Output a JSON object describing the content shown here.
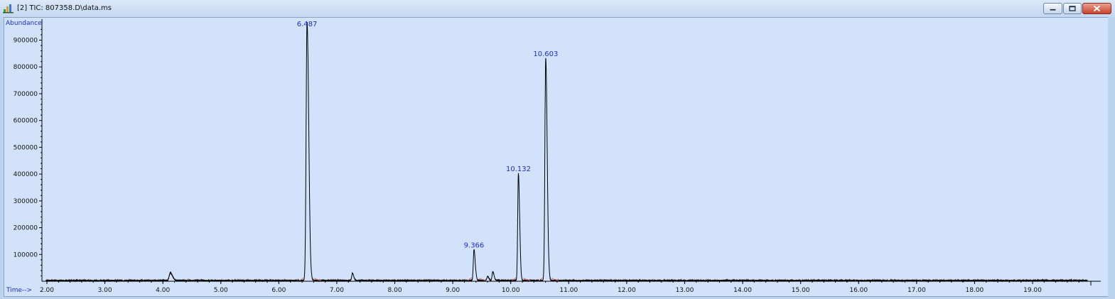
{
  "window": {
    "title": "[2] TIC: 807358.D\\data.ms",
    "icons": {
      "app": "chromatogram-app-icon",
      "minimize": "minimize-icon",
      "maximize": "maximize-icon",
      "close": "close-icon"
    },
    "colors": {
      "plot_background": "#d3e2fb",
      "trace": "#000000",
      "peak_labels": "#1c2bd6",
      "baseline_marks": "#e06666",
      "close_button": "#c8422c"
    }
  },
  "chart_data": {
    "type": "line",
    "ylabel": "Abundance",
    "xlabel": "Time-->",
    "x_ticks": [
      "2.00",
      "3.00",
      "4.00",
      "5.00",
      "6.00",
      "7.00",
      "8.00",
      "9.00",
      "10.00",
      "11.00",
      "12.00",
      "13.00",
      "14.00",
      "15.00",
      "16.00",
      "17.00",
      "18.00",
      "19.00"
    ],
    "y_ticks": [
      "100000",
      "200000",
      "300000",
      "400000",
      "500000",
      "600000",
      "700000",
      "800000",
      "900000"
    ],
    "xlim": [
      1.93,
      20.0
    ],
    "ylim": [
      0,
      965000
    ],
    "grid": false,
    "peaks": [
      {
        "label": "6.487",
        "rt": 6.487,
        "height": 965000,
        "width": 0.016
      },
      {
        "label": "9.366",
        "rt": 9.366,
        "height": 115000,
        "width": 0.012
      },
      {
        "label": "10.132",
        "rt": 10.132,
        "height": 400000,
        "width": 0.012
      },
      {
        "label": "10.603",
        "rt": 10.603,
        "height": 830000,
        "width": 0.014
      }
    ],
    "minor_peaks": [
      {
        "rt": 4.13,
        "height": 28000,
        "width": 0.02
      },
      {
        "rt": 7.27,
        "height": 27000,
        "width": 0.012
      },
      {
        "rt": 9.6,
        "height": 16000,
        "width": 0.012
      },
      {
        "rt": 9.69,
        "height": 33000,
        "width": 0.012
      }
    ]
  }
}
